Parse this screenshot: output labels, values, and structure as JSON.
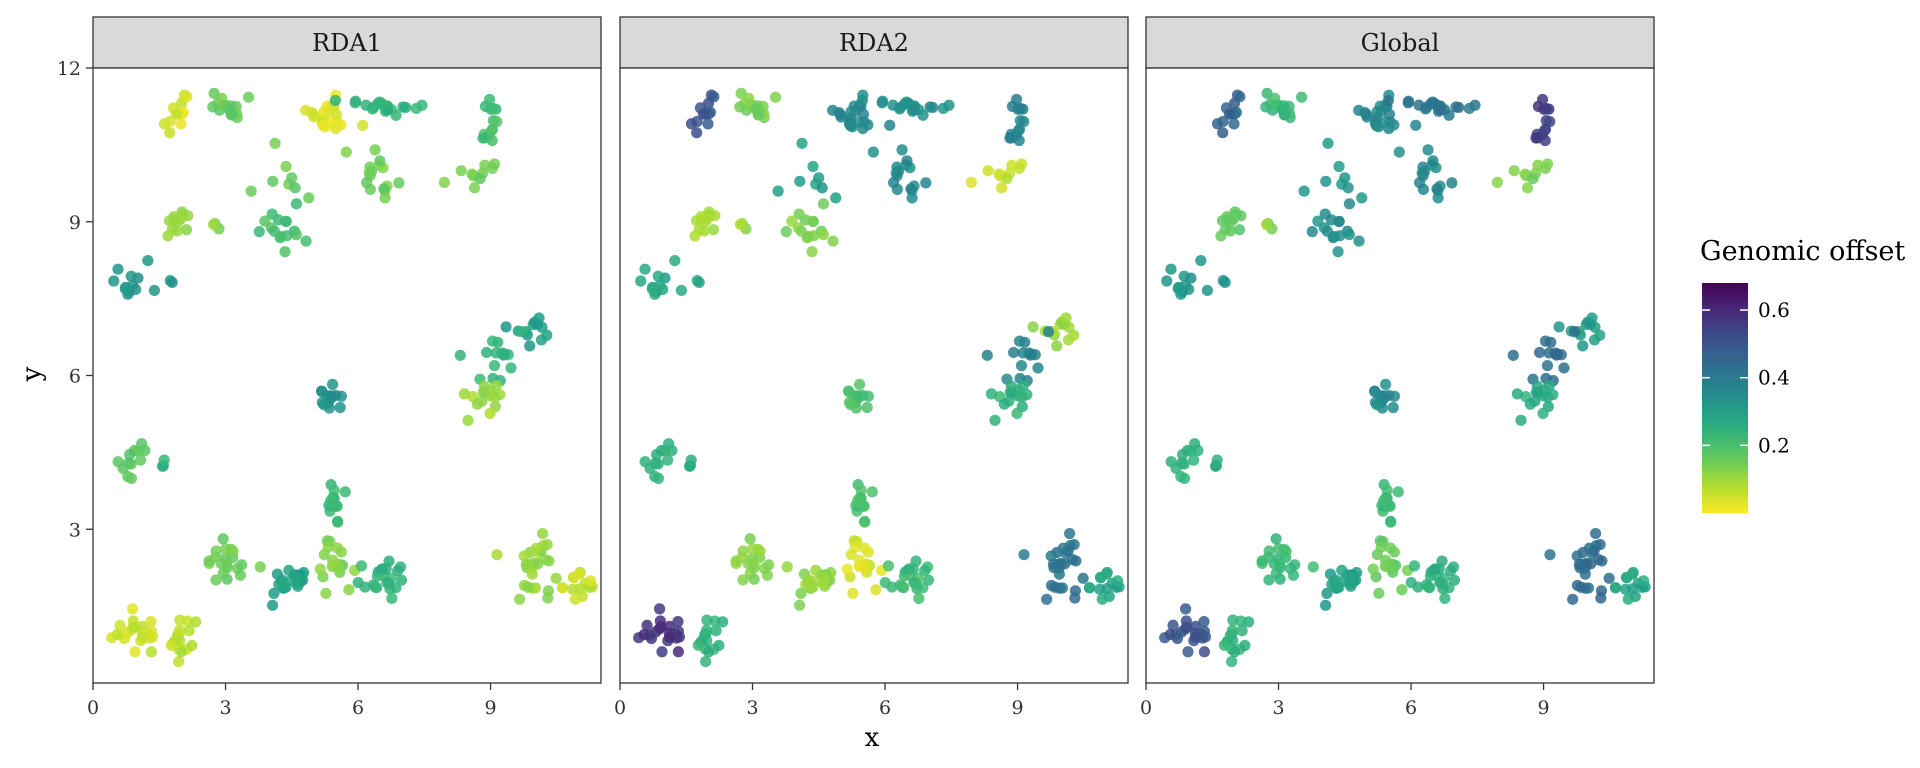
{
  "chart_data": {
    "type": "scatter",
    "facets": [
      "RDA1",
      "RDA2",
      "Global"
    ],
    "xlabel": "x",
    "ylabel": "y",
    "xlim": [
      0,
      11.5
    ],
    "ylim": [
      0,
      12
    ],
    "x_ticks": [
      "0",
      "3",
      "6",
      "9"
    ],
    "y_ticks": [
      "3",
      "6",
      "9",
      "12"
    ],
    "legend": {
      "title": "Genomic offset",
      "position": "right",
      "ticks": [
        "0.2",
        "0.4",
        "0.6"
      ],
      "range": [
        0.0,
        0.68
      ],
      "colormap": "viridis-reversed"
    },
    "clusters": [
      {
        "cx": 1.0,
        "cy": 1.0,
        "n": 22,
        "sx": 0.28,
        "sy": 0.22,
        "offsets": [
          0.05,
          0.58,
          0.5
        ]
      },
      {
        "cx": 2.0,
        "cy": 0.9,
        "n": 16,
        "sx": 0.22,
        "sy": 0.2,
        "offsets": [
          0.07,
          0.24,
          0.24
        ]
      },
      {
        "cx": 0.8,
        "cy": 4.4,
        "n": 12,
        "sx": 0.2,
        "sy": 0.18,
        "offsets": [
          0.17,
          0.24,
          0.24
        ]
      },
      {
        "cx": 1.6,
        "cy": 4.1,
        "n": 3,
        "sx": 0.1,
        "sy": 0.15,
        "offsets": [
          0.24,
          0.26,
          0.26
        ]
      },
      {
        "cx": 1.0,
        "cy": 7.8,
        "n": 14,
        "sx": 0.3,
        "sy": 0.25,
        "offsets": [
          0.33,
          0.28,
          0.33
        ]
      },
      {
        "cx": 1.9,
        "cy": 8.9,
        "n": 12,
        "sx": 0.18,
        "sy": 0.15,
        "offsets": [
          0.12,
          0.1,
          0.18
        ]
      },
      {
        "cx": 2.75,
        "cy": 8.95,
        "n": 3,
        "sx": 0.05,
        "sy": 0.04,
        "offsets": [
          0.12,
          0.1,
          0.12
        ]
      },
      {
        "cx": 1.9,
        "cy": 11.15,
        "n": 12,
        "sx": 0.18,
        "sy": 0.17,
        "offsets": [
          0.04,
          0.5,
          0.46
        ]
      },
      {
        "cx": 3.05,
        "cy": 11.2,
        "n": 16,
        "sx": 0.2,
        "sy": 0.12,
        "offsets": [
          0.16,
          0.14,
          0.22
        ]
      },
      {
        "cx": 5.3,
        "cy": 11.1,
        "n": 22,
        "sx": 0.28,
        "sy": 0.2,
        "offsets": [
          0.03,
          0.36,
          0.36
        ]
      },
      {
        "cx": 6.6,
        "cy": 11.25,
        "n": 20,
        "sx": 0.32,
        "sy": 0.1,
        "offsets": [
          0.24,
          0.34,
          0.42
        ]
      },
      {
        "cx": 6.4,
        "cy": 9.95,
        "n": 16,
        "sx": 0.26,
        "sy": 0.2,
        "offsets": [
          0.15,
          0.36,
          0.36
        ]
      },
      {
        "cx": 4.4,
        "cy": 9.8,
        "n": 8,
        "sx": 0.35,
        "sy": 0.35,
        "offsets": [
          0.16,
          0.3,
          0.32
        ]
      },
      {
        "cx": 4.3,
        "cy": 8.85,
        "n": 16,
        "sx": 0.3,
        "sy": 0.18,
        "offsets": [
          0.2,
          0.13,
          0.34
        ]
      },
      {
        "cx": 9.0,
        "cy": 10.9,
        "n": 14,
        "sx": 0.12,
        "sy": 0.32,
        "offsets": [
          0.21,
          0.38,
          0.56
        ]
      },
      {
        "cx": 8.7,
        "cy": 10.0,
        "n": 10,
        "sx": 0.22,
        "sy": 0.15,
        "offsets": [
          0.15,
          0.06,
          0.14
        ]
      },
      {
        "cx": 9.9,
        "cy": 6.85,
        "n": 12,
        "sx": 0.28,
        "sy": 0.22,
        "offsets": [
          0.3,
          0.1,
          0.3
        ]
      },
      {
        "cx": 9.0,
        "cy": 6.4,
        "n": 16,
        "sx": 0.32,
        "sy": 0.28,
        "offsets": [
          0.24,
          0.38,
          0.44
        ]
      },
      {
        "cx": 8.7,
        "cy": 5.5,
        "n": 14,
        "sx": 0.22,
        "sy": 0.32,
        "offsets": [
          0.1,
          0.24,
          0.26
        ]
      },
      {
        "cx": 5.35,
        "cy": 5.45,
        "n": 14,
        "sx": 0.14,
        "sy": 0.22,
        "offsets": [
          0.34,
          0.2,
          0.36
        ]
      },
      {
        "cx": 5.45,
        "cy": 3.45,
        "n": 14,
        "sx": 0.16,
        "sy": 0.22,
        "offsets": [
          0.22,
          0.2,
          0.22
        ]
      },
      {
        "cx": 3.0,
        "cy": 2.35,
        "n": 20,
        "sx": 0.24,
        "sy": 0.22,
        "offsets": [
          0.15,
          0.12,
          0.22
        ]
      },
      {
        "cx": 4.35,
        "cy": 2.0,
        "n": 22,
        "sx": 0.27,
        "sy": 0.17,
        "offsets": [
          0.3,
          0.12,
          0.3
        ]
      },
      {
        "cx": 5.4,
        "cy": 2.35,
        "n": 20,
        "sx": 0.22,
        "sy": 0.2,
        "offsets": [
          0.13,
          0.04,
          0.16
        ]
      },
      {
        "cx": 6.6,
        "cy": 2.05,
        "n": 22,
        "sx": 0.28,
        "sy": 0.18,
        "offsets": [
          0.24,
          0.22,
          0.25
        ]
      },
      {
        "cx": 10.0,
        "cy": 2.2,
        "n": 26,
        "sx": 0.3,
        "sy": 0.3,
        "offsets": [
          0.11,
          0.42,
          0.44
        ]
      },
      {
        "cx": 11.0,
        "cy": 1.95,
        "n": 14,
        "sx": 0.18,
        "sy": 0.15,
        "offsets": [
          0.06,
          0.28,
          0.28
        ]
      }
    ]
  }
}
